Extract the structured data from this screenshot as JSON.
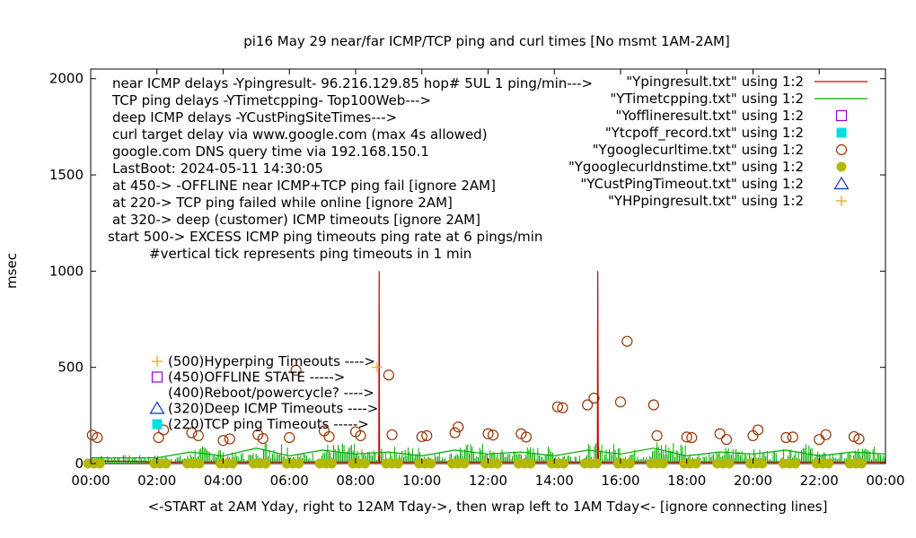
{
  "chart_data": {
    "type": "scatter",
    "title": "pi16 May 29  near/far ICMP/TCP ping and curl times [No msmt 1AM-2AM]",
    "xlabel": "<-START at 2AM Yday, right to 12AM Tday->, then wrap left to 1AM Tday<- [ignore connecting lines]",
    "ylabel": "msec",
    "xlim": [
      0,
      24
    ],
    "ylim": [
      0,
      2050
    ],
    "x_ticks": [
      "00:00",
      "02:00",
      "04:00",
      "06:00",
      "08:00",
      "10:00",
      "12:00",
      "14:00",
      "16:00",
      "18:00",
      "20:00",
      "22:00",
      "00:00"
    ],
    "y_ticks": [
      "0",
      "500",
      "1000",
      "1500",
      "2000"
    ],
    "y_tick_values": [
      0,
      500,
      1000,
      1500,
      2000
    ],
    "grid": false,
    "legend_position": "top-right",
    "info_lines": [
      "near ICMP delays -Ypingresult- 96.216.129.85 hop# 5UL 1 ping/min--->",
      "TCP ping delays -YTimetcpping- Top100Web--->",
      "deep ICMP delays -YCustPingSiteTimes--->",
      "curl target delay via www.google.com (max 4s allowed)",
      "google.com DNS query time via 192.168.150.1",
      "LastBoot: 2024-05-11 14:30:05",
      "at 450-> -OFFLINE near ICMP+TCP ping fail [ignore 2AM]",
      "at 220-> TCP ping failed while online [ignore 2AM]",
      "at 320-> deep (customer) ICMP timeouts [ignore 2AM]",
      "start 500-> EXCESS ICMP ping timeouts ping rate at 6 pings/min",
      "#vertical tick represents ping timeouts in 1 min"
    ],
    "marker_keys": [
      {
        "label": "(500)Hyperping Timeouts ---->",
        "marker": "plus",
        "color": "#e6a817"
      },
      {
        "label": "(450)OFFLINE STATE ----->",
        "marker": "open-square",
        "color": "#9400d3"
      },
      {
        "label": "(400)Reboot/powercycle? ---->",
        "marker": "none",
        "color": "#000000"
      },
      {
        "label": "(320)Deep ICMP Timeouts ---->",
        "marker": "open-triangle",
        "color": "#0033cc"
      },
      {
        "label": "(220)TCP ping Timeouts ----->",
        "marker": "filled-square",
        "color": "#00e0e0"
      }
    ],
    "series": [
      {
        "name": "\"Ypingresult.txt\" using 1:2",
        "kind": "line",
        "color": "#cc0000",
        "points": [
          [
            0,
            12
          ],
          [
            1.0,
            12
          ],
          [
            2.0,
            8
          ],
          [
            8.7,
            8
          ],
          [
            8.71,
            1000
          ],
          [
            8.72,
            8
          ],
          [
            15.3,
            8
          ],
          [
            15.31,
            1000
          ],
          [
            15.32,
            500
          ],
          [
            15.33,
            8
          ],
          [
            24,
            8
          ]
        ]
      },
      {
        "name": "\"YTimetcpping.txt\" using 1:2",
        "kind": "line",
        "color": "#00aa00",
        "points": [
          [
            0,
            30
          ],
          [
            1.0,
            30
          ],
          [
            2.0,
            30
          ],
          [
            3.0,
            60
          ],
          [
            4.0,
            40
          ],
          [
            5.0,
            80
          ],
          [
            6.0,
            40
          ],
          [
            7.0,
            70
          ],
          [
            8.0,
            50
          ],
          [
            9.0,
            60
          ],
          [
            10.0,
            40
          ],
          [
            11.0,
            70
          ],
          [
            12.0,
            50
          ],
          [
            13.0,
            60
          ],
          [
            14.0,
            40
          ],
          [
            15.0,
            70
          ],
          [
            16.0,
            50
          ],
          [
            17.0,
            80
          ],
          [
            18.0,
            40
          ],
          [
            19.0,
            60
          ],
          [
            20.0,
            50
          ],
          [
            21.0,
            70
          ],
          [
            22.0,
            40
          ],
          [
            23.0,
            60
          ],
          [
            24,
            50
          ]
        ]
      },
      {
        "name": "\"Yofflineresult.txt\" using 1:2",
        "kind": "marker",
        "marker": "open-square",
        "color": "#9400d3",
        "points": []
      },
      {
        "name": "\"Ytcpoff_record.txt\" using 1:2",
        "kind": "marker",
        "marker": "filled-square",
        "color": "#00e0e0",
        "points": []
      },
      {
        "name": "\"Ygooglecurltime.txt\" using 1:2",
        "kind": "marker",
        "marker": "open-circle",
        "color": "#993300",
        "points": [
          [
            0.05,
            148
          ],
          [
            0.2,
            135
          ],
          [
            2.05,
            135
          ],
          [
            2.2,
            175
          ],
          [
            3.05,
            160
          ],
          [
            3.25,
            145
          ],
          [
            4.0,
            120
          ],
          [
            4.2,
            128
          ],
          [
            5.05,
            150
          ],
          [
            5.2,
            130
          ],
          [
            6.0,
            135
          ],
          [
            6.2,
            485
          ],
          [
            7.05,
            170
          ],
          [
            7.2,
            140
          ],
          [
            8.0,
            165
          ],
          [
            8.15,
            145
          ],
          [
            9.0,
            460
          ],
          [
            9.1,
            150
          ],
          [
            10.0,
            140
          ],
          [
            10.15,
            145
          ],
          [
            11.0,
            160
          ],
          [
            11.1,
            190
          ],
          [
            12.0,
            155
          ],
          [
            12.15,
            148
          ],
          [
            13.0,
            155
          ],
          [
            13.15,
            138
          ],
          [
            14.1,
            295
          ],
          [
            14.25,
            290
          ],
          [
            15.0,
            305
          ],
          [
            15.2,
            340
          ],
          [
            16.0,
            320
          ],
          [
            16.2,
            635
          ],
          [
            17.0,
            305
          ],
          [
            17.1,
            145
          ],
          [
            18.0,
            138
          ],
          [
            18.15,
            135
          ],
          [
            19.0,
            155
          ],
          [
            19.2,
            125
          ],
          [
            20.0,
            145
          ],
          [
            20.15,
            175
          ],
          [
            21.0,
            135
          ],
          [
            21.2,
            138
          ],
          [
            22.0,
            125
          ],
          [
            22.2,
            150
          ],
          [
            23.05,
            140
          ],
          [
            23.2,
            128
          ]
        ]
      },
      {
        "name": "\"Ygooglecurldnstime.txt\" using 1:2",
        "kind": "marker",
        "marker": "filled-circle",
        "color": "#b5b800",
        "points": [
          [
            0.1,
            0
          ],
          [
            2.1,
            0
          ],
          [
            3.1,
            0
          ],
          [
            4.1,
            0
          ],
          [
            5.1,
            0
          ],
          [
            6.1,
            0
          ],
          [
            7.1,
            0
          ],
          [
            8.1,
            0
          ],
          [
            9.1,
            0
          ],
          [
            10.1,
            0
          ],
          [
            11.1,
            0
          ],
          [
            12.1,
            0
          ],
          [
            13.1,
            0
          ],
          [
            14.1,
            0
          ],
          [
            15.1,
            0
          ],
          [
            16.1,
            0
          ],
          [
            17.1,
            0
          ],
          [
            18.1,
            0
          ],
          [
            19.1,
            0
          ],
          [
            20.1,
            0
          ],
          [
            21.1,
            0
          ],
          [
            22.1,
            0
          ],
          [
            23.1,
            0
          ]
        ]
      },
      {
        "name": "\"YCustPingTimeout.txt\" using 1:2",
        "kind": "marker",
        "marker": "open-triangle",
        "color": "#0033cc",
        "points": []
      },
      {
        "name": "\"YHPpingresult.txt\" using 1:2",
        "kind": "marker",
        "marker": "plus",
        "color": "#e6a817",
        "points": [
          [
            8.65,
            500
          ]
        ]
      }
    ]
  }
}
